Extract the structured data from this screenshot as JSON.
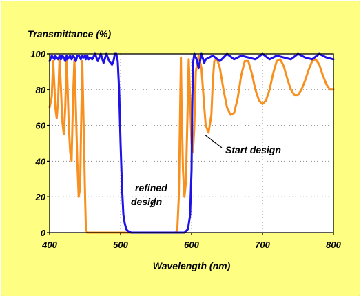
{
  "chart_data": {
    "type": "line",
    "title": "",
    "ylabel": "Transmittance (%)",
    "xlabel": "Wavelength (nm)",
    "xlim": [
      400,
      800
    ],
    "ylim": [
      0,
      100
    ],
    "x_ticks": [
      400,
      500,
      600,
      700,
      800
    ],
    "x_tick_labels": [
      "400",
      "500",
      "600",
      "700",
      "800"
    ],
    "y_ticks": [
      0,
      20,
      40,
      60,
      80,
      100
    ],
    "y_tick_labels": [
      "0",
      "20",
      "40",
      "60",
      "80",
      "100"
    ],
    "grid": true,
    "legend": "none",
    "background_color": "#fefe82",
    "plot_background_color": "#ffffff",
    "series": [
      {
        "color": "#f7901e",
        "x": [
          400,
          403,
          405,
          407,
          408,
          410,
          412,
          414,
          416,
          418,
          420,
          422,
          424,
          425,
          427,
          429,
          431,
          433,
          435,
          437,
          439,
          441,
          443,
          444,
          446,
          448,
          450,
          451,
          452,
          453,
          455,
          457,
          460,
          470,
          480,
          490,
          500,
          510,
          520,
          530,
          540,
          550,
          560,
          570,
          578,
          580,
          582,
          584,
          585,
          586,
          588,
          590,
          592,
          594,
          596,
          598,
          600,
          602,
          604,
          606,
          610,
          614,
          618,
          620,
          624,
          628,
          630,
          632,
          636,
          640,
          645,
          650,
          655,
          660,
          665,
          670,
          675,
          680,
          685,
          690,
          695,
          700,
          705,
          710,
          715,
          720,
          725,
          730,
          735,
          740,
          745,
          750,
          755,
          760,
          765,
          770,
          775,
          780,
          785,
          790,
          795,
          800
        ],
        "y": [
          70,
          76,
          96,
          80,
          70,
          64,
          74,
          98,
          80,
          62,
          55,
          70,
          97,
          85,
          60,
          45,
          40,
          75,
          97,
          70,
          40,
          20,
          25,
          50,
          96,
          60,
          20,
          5,
          1,
          0,
          0,
          0,
          0,
          0,
          0,
          0,
          0,
          0,
          0,
          0,
          0,
          0,
          0,
          0,
          0,
          2,
          20,
          70,
          98,
          70,
          35,
          20,
          28,
          60,
          97,
          75,
          50,
          45,
          60,
          90,
          99,
          92,
          70,
          60,
          56,
          66,
          85,
          96,
          97,
          92,
          80,
          70,
          66,
          67,
          75,
          88,
          96,
          96,
          89,
          80,
          74,
          72,
          74,
          80,
          89,
          96,
          97,
          93,
          86,
          80,
          77,
          77,
          80,
          85,
          91,
          96,
          97,
          94,
          88,
          83,
          80,
          80
        ]
      },
      {
        "color": "#1f12e8",
        "x": [
          400,
          403,
          405,
          407,
          408,
          410,
          412,
          414,
          416,
          418,
          420,
          422,
          424,
          425,
          427,
          429,
          431,
          433,
          435,
          437,
          439,
          441,
          443,
          444,
          446,
          448,
          450,
          451,
          452,
          453,
          455,
          457,
          460,
          464,
          468,
          472,
          476,
          480,
          484,
          488,
          490,
          492,
          494,
          496,
          498,
          500,
          502,
          504,
          506,
          508,
          510,
          515,
          520,
          530,
          540,
          550,
          560,
          570,
          580,
          585,
          590,
          595,
          598,
          600,
          601,
          602,
          604,
          606,
          608,
          610,
          614,
          618,
          620,
          630,
          640,
          650,
          660,
          670,
          680,
          690,
          700,
          710,
          720,
          730,
          740,
          750,
          760,
          770,
          780,
          790,
          800
        ],
        "y": [
          96,
          99,
          98,
          97,
          99,
          98,
          97,
          99,
          97,
          99,
          98,
          96,
          99,
          97,
          98,
          99,
          97,
          99,
          98,
          96,
          99,
          99,
          98,
          97,
          99,
          98,
          99,
          97,
          98,
          99,
          97,
          98,
          97,
          100,
          96,
          100,
          95,
          100,
          96,
          94,
          96,
          100,
          100,
          96,
          80,
          50,
          25,
          10,
          5,
          2,
          1,
          0,
          0,
          0,
          0,
          0,
          0,
          0,
          0,
          0,
          0,
          2,
          10,
          35,
          70,
          95,
          100,
          98,
          96,
          92,
          100,
          95,
          97,
          99,
          96,
          100,
          97,
          99,
          98,
          97,
          100,
          97,
          99,
          98,
          97,
          100,
          98,
          97,
          100,
          98,
          97
        ]
      }
    ],
    "annotations": [
      {
        "lines": [
          "Start design"
        ]
      },
      {
        "lines": [
          "refined",
          "design"
        ]
      }
    ]
  }
}
